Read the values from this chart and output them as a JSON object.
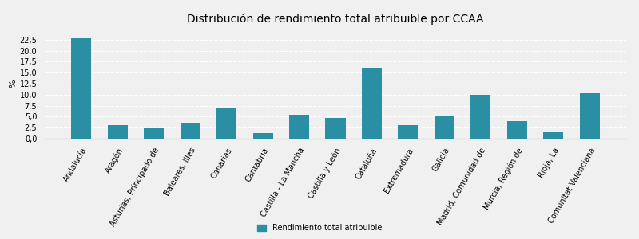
{
  "title": "Distribución de rendimiento total atribuible por CCAA",
  "categories": [
    "Andalucía",
    "Aragón",
    "Asturias, Principado de",
    "Baleares, Illes",
    "Canarias",
    "Cantabria",
    "Castilla - La Mancha",
    "Castilla y León",
    "Cataluña",
    "Extremadura",
    "Galicia",
    "Madrid, Comunidad de",
    "Murcia, Región de",
    "Rioja, La",
    "Comunitat Valenciana"
  ],
  "values": [
    22.8,
    3.1,
    2.3,
    3.6,
    6.9,
    1.2,
    5.4,
    4.7,
    16.2,
    3.1,
    5.0,
    10.0,
    3.9,
    1.4,
    10.4
  ],
  "bar_color": "#2b8fa3",
  "ylabel": "%",
  "ylim": [
    0,
    25
  ],
  "yticks": [
    0.0,
    2.5,
    5.0,
    7.5,
    10.0,
    12.5,
    15.0,
    17.5,
    20.0,
    22.5
  ],
  "ytick_labels": [
    "0,0",
    "2,5",
    "5,0",
    "7,5",
    "10,0",
    "12,5",
    "15,0",
    "17,5",
    "20,0",
    "22,5"
  ],
  "legend_label": "Rendimiento total atribuible",
  "title_fontsize": 10,
  "tick_fontsize": 7,
  "ylabel_fontsize": 8,
  "background_color": "#f0f0f0",
  "grid_color": "#ffffff",
  "bar_width": 0.55
}
